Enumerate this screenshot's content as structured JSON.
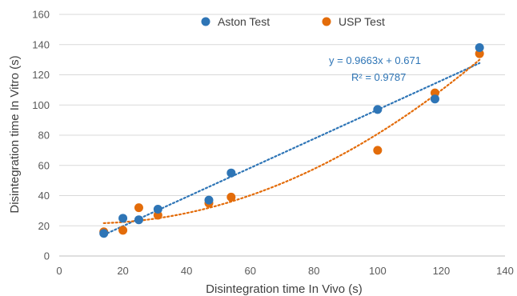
{
  "chart_data": {
    "type": "scatter",
    "xlabel": "Disintegration time In Vivo (s)",
    "ylabel": "Disintegration time In Vitro (s)",
    "xlim": [
      0,
      140
    ],
    "ylim": [
      0,
      160
    ],
    "x_ticks": [
      "0",
      "20",
      "40",
      "60",
      "80",
      "100",
      "120",
      "140"
    ],
    "y_ticks": [
      "0",
      "20",
      "40",
      "60",
      "80",
      "100",
      "120",
      "140",
      "160"
    ],
    "grid": "horizontal",
    "legend_position": "top",
    "series": [
      {
        "name": "Aston Test",
        "color": "#2E75B6",
        "trendline": "linear",
        "points": [
          {
            "x": 14,
            "y": 15
          },
          {
            "x": 20,
            "y": 25
          },
          {
            "x": 25,
            "y": 24
          },
          {
            "x": 31,
            "y": 31
          },
          {
            "x": 47,
            "y": 37
          },
          {
            "x": 54,
            "y": 55
          },
          {
            "x": 100,
            "y": 97
          },
          {
            "x": 118,
            "y": 104
          },
          {
            "x": 132,
            "y": 138
          }
        ]
      },
      {
        "name": "USP Test",
        "color": "#E36C0A",
        "trendline": "polynomial",
        "points": [
          {
            "x": 14,
            "y": 16
          },
          {
            "x": 20,
            "y": 17
          },
          {
            "x": 25,
            "y": 32
          },
          {
            "x": 31,
            "y": 27
          },
          {
            "x": 47,
            "y": 35
          },
          {
            "x": 54,
            "y": 39
          },
          {
            "x": 100,
            "y": 70
          },
          {
            "x": 118,
            "y": 108
          },
          {
            "x": 132,
            "y": 134
          }
        ]
      }
    ],
    "annotations": {
      "equation": "y = 0.9663x + 0.671",
      "r_squared": "R² = 0.9787",
      "color": "#2E75B6"
    }
  }
}
